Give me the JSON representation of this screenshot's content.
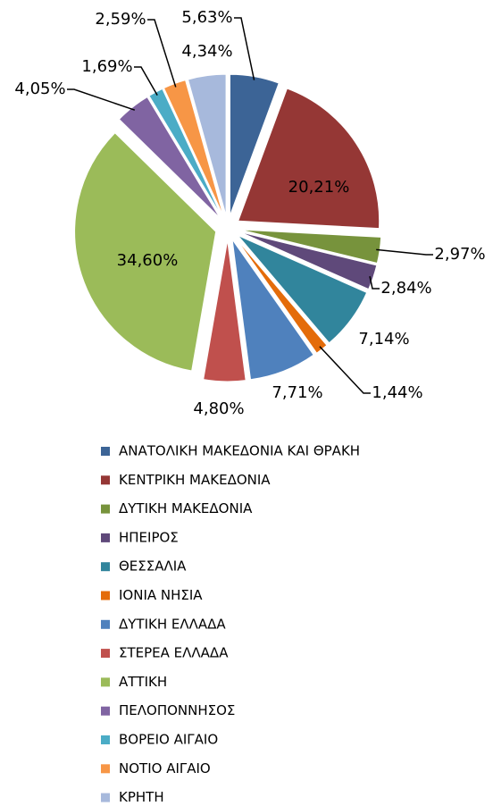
{
  "chart_data": {
    "type": "pie",
    "categories": [
      "ΑΝΑΤΟΛΙΚΗ ΜΑΚΕΔΟΝΙΑ ΚΑΙ ΘΡΑΚΗ",
      "ΚΕΝΤΡΙΚΗ ΜΑΚΕΔΟΝΙΑ",
      "ΔΥΤΙΚΗ ΜΑΚΕΔΟΝΙΑ",
      "ΗΠΕΙΡΟΣ",
      "ΘΕΣΣΑΛΙΑ",
      "ΙΟΝΙΑ ΝΗΣΙΑ",
      "ΔΥΤΙΚΗ ΕΛΛΑΔΑ",
      "ΣΤΕΡΕΑ ΕΛΛΑΔΑ",
      "ΑΤΤΙΚΗ",
      "ΠΕΛΟΠΟΝΝΗΣΟΣ",
      "ΒΟΡΕΙΟ ΑΙΓΑΙΟ",
      "ΝΟΤΙΟ ΑΙΓΑΙΟ",
      "ΚΡΗΤΗ"
    ],
    "values": [
      5.63,
      20.21,
      2.97,
      2.84,
      7.14,
      1.44,
      7.71,
      4.8,
      34.6,
      4.05,
      1.69,
      2.59,
      4.34
    ],
    "value_labels": [
      "5,63%",
      "20,21%",
      "2,97%",
      "2,84%",
      "7,14%",
      "1,44%",
      "7,71%",
      "4,80%",
      "34,60%",
      "4,05%",
      "1,69%",
      "2,59%",
      "4,34%"
    ],
    "colors": [
      "#3c6496",
      "#953735",
      "#77933c",
      "#5f497a",
      "#31859c",
      "#e46c0a",
      "#4f81bd",
      "#c0504d",
      "#9bbb59",
      "#8064a2",
      "#4bacc6",
      "#f79646",
      "#a7b9dc"
    ],
    "legend": "bottom"
  }
}
